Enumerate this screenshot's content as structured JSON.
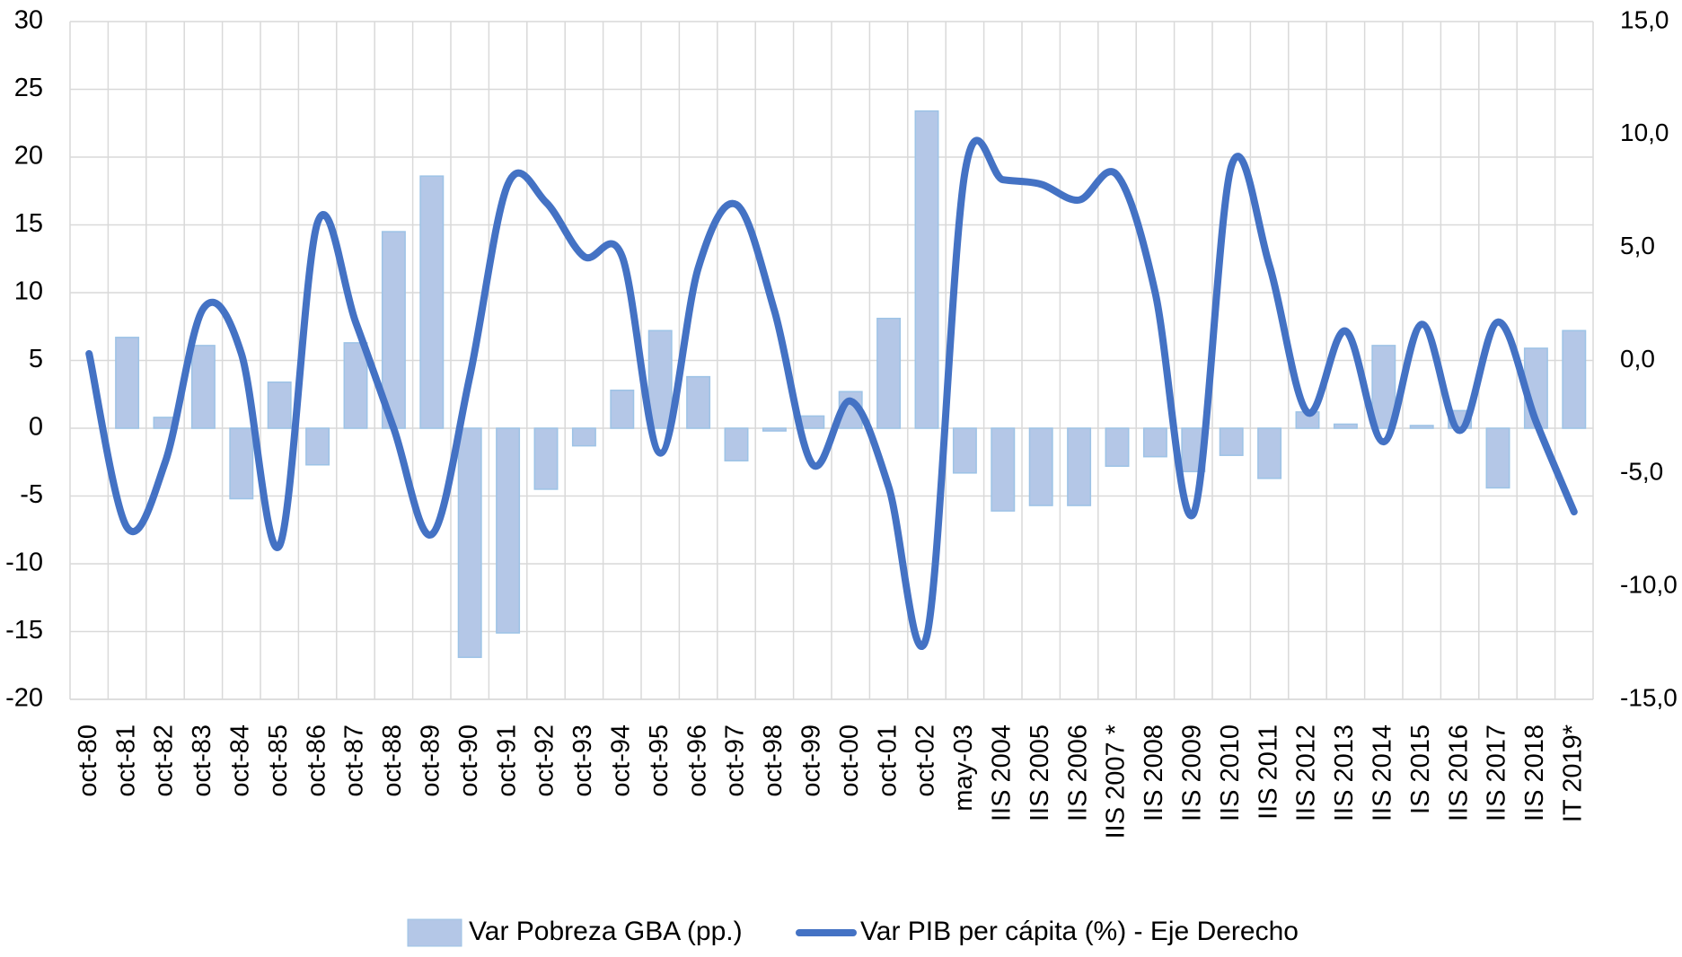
{
  "chart_data": {
    "type": "bar_line",
    "categories": [
      "oct-80",
      "oct-81",
      "oct-82",
      "oct-83",
      "oct-84",
      "oct-85",
      "oct-86",
      "oct-87",
      "oct-88",
      "oct-89",
      "oct-90",
      "oct-91",
      "oct-92",
      "oct-93",
      "oct-94",
      "oct-95",
      "oct-96",
      "oct-97",
      "oct-98",
      "oct-99",
      "oct-00",
      "oct-01",
      "oct-02",
      "may-03",
      "IIS 2004",
      "IIS 2005",
      "IIS 2006",
      "IIS 2007 *",
      "IIS 2008",
      "IIS 2009",
      "IIS 2010",
      "IIS 2011",
      "IIS 2012",
      "IIS 2013",
      "IIS 2014",
      "IS 2015",
      "IIS 2016",
      "IIS 2017",
      "IIS 2018",
      "IT 2019*"
    ],
    "series": [
      {
        "name": "Var Pobreza GBA (pp.)",
        "color": "#b4c7e7",
        "kind": "bar",
        "values": [
          0,
          6.7,
          0.8,
          6.1,
          -5.2,
          3.4,
          -2.7,
          6.3,
          14.5,
          18.6,
          -16.9,
          -15.1,
          -4.5,
          -1.3,
          2.8,
          7.2,
          3.8,
          -2.4,
          -0.2,
          0.9,
          2.7,
          8.1,
          23.4,
          -3.3,
          -6.1,
          -5.7,
          -5.7,
          -2.8,
          -2.1,
          -3.2,
          -2.0,
          -3.7,
          1.2,
          0.3,
          6.1,
          0.2,
          1.3,
          -4.4,
          5.9,
          7.2
        ]
      },
      {
        "name": "Var PIB per cápita (%) - Eje Derecho",
        "color": "#4472c4",
        "kind": "line",
        "axis": "y2",
        "values": [
          0.3,
          -7.4,
          -4.5,
          2.3,
          0.3,
          -8.2,
          6.1,
          1.7,
          -3.0,
          -7.7,
          -0.7,
          7.8,
          7.0,
          4.6,
          4.6,
          -4.1,
          4.1,
          6.9,
          2.2,
          -4.6,
          -1.8,
          -5.6,
          -12.2,
          8.3,
          8.0,
          7.8,
          7.1,
          8.2,
          3.0,
          -6.8,
          8.6,
          4.2,
          -2.3,
          1.3,
          -3.6,
          1.6,
          -3.1,
          1.7,
          -2.7,
          -6.7
        ]
      }
    ],
    "ylim": [
      -20,
      30
    ],
    "yticks": [
      -20,
      -15,
      -10,
      -5,
      0,
      5,
      10,
      15,
      20,
      25,
      30
    ],
    "y2lim": [
      -15,
      15
    ],
    "y2ticks": [
      {
        "value": -15,
        "label": "-15,0"
      },
      {
        "value": -10,
        "label": "-10,0"
      },
      {
        "value": -5,
        "label": "-5,0"
      },
      {
        "value": 0,
        "label": "0,0"
      },
      {
        "value": 5,
        "label": "5,0"
      },
      {
        "value": 10,
        "label": "10,0"
      },
      {
        "value": 15,
        "label": "15,0"
      }
    ],
    "grid": true,
    "legend": "bottom"
  }
}
